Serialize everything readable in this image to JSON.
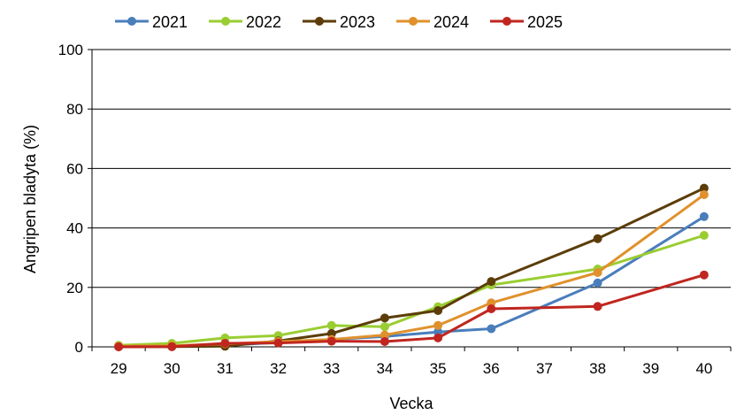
{
  "chart_data": {
    "type": "line",
    "xlabel": "Vecka",
    "ylabel": "Angripen bladyta (%)",
    "xlim": [
      28.5,
      40.5
    ],
    "ylim": [
      0,
      100
    ],
    "x_ticks": [
      29,
      30,
      31,
      32,
      33,
      34,
      35,
      36,
      37,
      38,
      39,
      40
    ],
    "y_ticks": [
      0,
      20,
      40,
      60,
      80,
      100
    ],
    "grid": "horizontal",
    "legend_position": "top",
    "series": [
      {
        "name": "2021",
        "color": "#4a7ebb",
        "points": [
          [
            29,
            0.1
          ],
          [
            30,
            0.3
          ],
          [
            31,
            0.5
          ],
          [
            32,
            1.5
          ],
          [
            33,
            2.5
          ],
          [
            34,
            3.5
          ],
          [
            35,
            5.0
          ],
          [
            36,
            6.1
          ],
          [
            38,
            21.5
          ],
          [
            40,
            43.8
          ]
        ]
      },
      {
        "name": "2022",
        "color": "#9acd32",
        "points": [
          [
            29,
            0.5
          ],
          [
            30,
            1.2
          ],
          [
            31,
            3.0
          ],
          [
            32,
            3.8
          ],
          [
            33,
            7.2
          ],
          [
            34,
            6.8
          ],
          [
            35,
            13.5
          ],
          [
            36,
            20.8
          ],
          [
            38,
            26.2
          ],
          [
            40,
            37.5
          ]
        ]
      },
      {
        "name": "2023",
        "color": "#5c3d0a",
        "points": [
          [
            29,
            0.1
          ],
          [
            30,
            0.1
          ],
          [
            31,
            0.2
          ],
          [
            32,
            2.0
          ],
          [
            33,
            4.5
          ],
          [
            34,
            9.7
          ],
          [
            35,
            12.2
          ],
          [
            36,
            22.0
          ],
          [
            38,
            36.4
          ],
          [
            40,
            53.4
          ]
        ]
      },
      {
        "name": "2024",
        "color": "#e0912c",
        "points": [
          [
            29,
            0.2
          ],
          [
            30,
            0.4
          ],
          [
            31,
            1.0
          ],
          [
            32,
            1.8
          ],
          [
            33,
            2.5
          ],
          [
            34,
            4.0
          ],
          [
            35,
            7.2
          ],
          [
            36,
            14.8
          ],
          [
            38,
            25.0
          ],
          [
            40,
            51.2
          ]
        ]
      },
      {
        "name": "2025",
        "color": "#c0261f",
        "points": [
          [
            29,
            0.0
          ],
          [
            30,
            0.1
          ],
          [
            31,
            1.2
          ],
          [
            32,
            1.3
          ],
          [
            33,
            1.9
          ],
          [
            34,
            1.8
          ],
          [
            35,
            3.0
          ],
          [
            36,
            12.8
          ],
          [
            38,
            13.6
          ],
          [
            40,
            24.2
          ]
        ]
      }
    ]
  }
}
